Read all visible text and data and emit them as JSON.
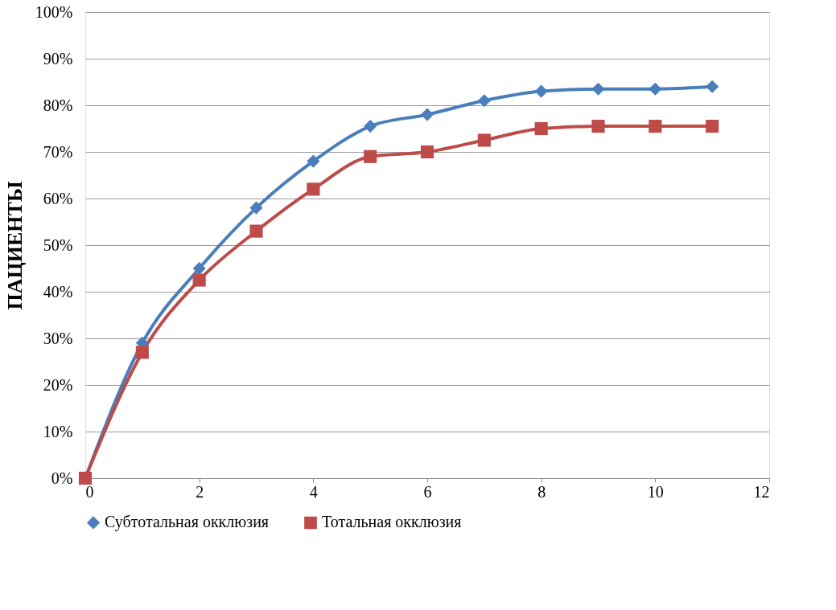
{
  "chart_data": {
    "type": "line",
    "ylabel": "ПАЦИЕНТЫ",
    "x": [
      0,
      1,
      2,
      3,
      4,
      5,
      6,
      7,
      8,
      9,
      10,
      11
    ],
    "series": [
      {
        "name": "Субтотальная окклюзия",
        "color": "#4a7ebb",
        "marker": "diamond",
        "values": [
          0,
          29,
          45,
          58,
          68,
          75.5,
          78,
          81,
          83,
          83.5,
          83.5,
          84
        ]
      },
      {
        "name": "Тотальная окклюзия",
        "color": "#be4b48",
        "marker": "square",
        "values": [
          0,
          27,
          42.5,
          53,
          62,
          69,
          70,
          72.5,
          75,
          75.5,
          75.5,
          75.5
        ]
      }
    ],
    "xlim": [
      0,
      12
    ],
    "xticks": [
      0,
      2,
      4,
      6,
      8,
      10,
      12
    ],
    "ylim": [
      0,
      100
    ],
    "yticks": [
      {
        "value": 0,
        "label": "0%"
      },
      {
        "value": 10,
        "label": "10%"
      },
      {
        "value": 20,
        "label": "20%"
      },
      {
        "value": 30,
        "label": "30%"
      },
      {
        "value": 40,
        "label": "40%"
      },
      {
        "value": 50,
        "label": "50%"
      },
      {
        "value": 60,
        "label": "60%"
      },
      {
        "value": 70,
        "label": "70%"
      },
      {
        "value": 80,
        "label": "80%"
      },
      {
        "value": 90,
        "label": "90%"
      },
      {
        "value": 100,
        "label": "100%"
      }
    ],
    "grid": "y",
    "legend": "bottom",
    "line_style": "solid"
  }
}
